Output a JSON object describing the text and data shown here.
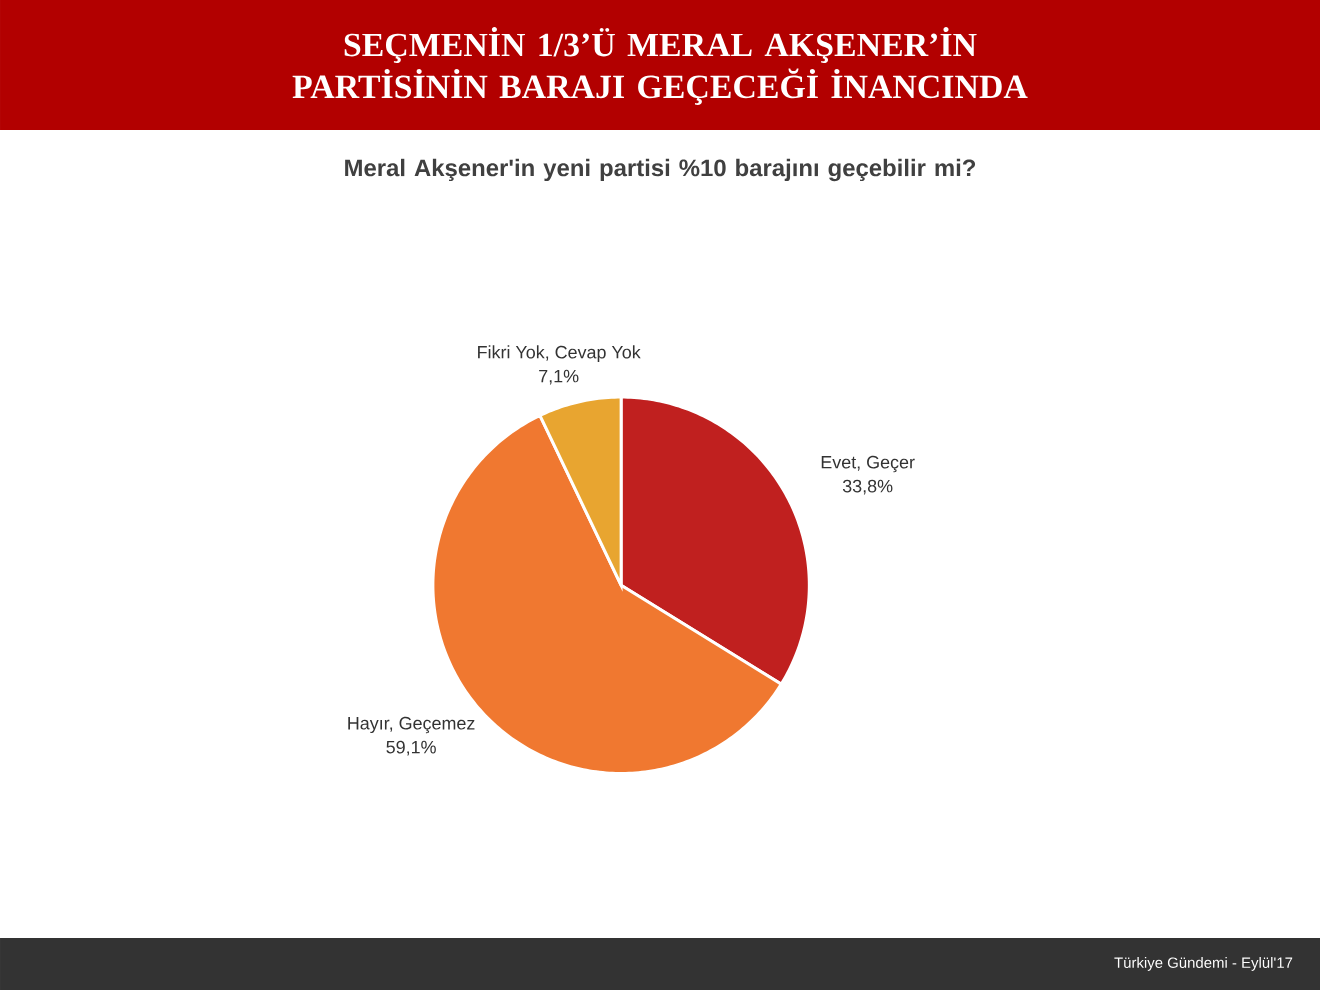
{
  "chart_data": {
    "type": "pie",
    "title": "SEÇMENİN 1/3’Ü MERAL AKŞENER’İN PARTİSİNİN BARAJI GEÇECEĞİ İNANCINDA",
    "subtitle": "Meral Akşener'in yeni partisi %10 barajını geçebilir mi?",
    "categories": [
      "Evet, Geçer",
      "Hayır, Geçemez",
      "Fikri Yok, Cevap Yok"
    ],
    "values": [
      33.8,
      59.1,
      7.1
    ],
    "value_labels": [
      "33,8%",
      "59,1%",
      "7,1%"
    ],
    "colors": [
      "#c0201f",
      "#f07830",
      "#e8a530"
    ],
    "annotations": [
      "Türkiye Gündemi - Eylül'17"
    ]
  }
}
